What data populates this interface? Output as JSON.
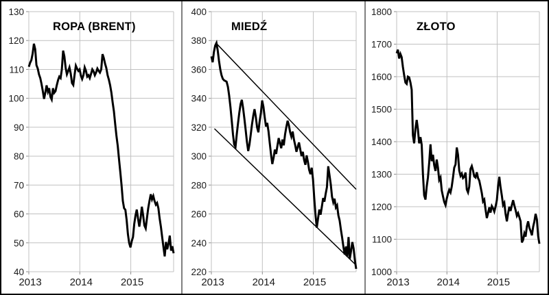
{
  "figure": {
    "background": "#ffffff",
    "outer_border_color": "#000000",
    "divider_color": "#7f7f7f",
    "grid_color": "#c0c0c0",
    "tick_color": "#8c8c8c",
    "label_color": "#1a1a1a",
    "series_color": "#000000"
  },
  "chart_data": [
    {
      "type": "line",
      "title": "ROPA (BRENT)",
      "xlabel": "",
      "ylabel": "",
      "grid": true,
      "legend": "none",
      "ylim": [
        40,
        130
      ],
      "ystep": 10,
      "yticks": [
        130,
        120,
        110,
        100,
        90,
        80,
        70,
        60,
        50,
        40
      ],
      "xlim": [
        2013,
        2015.84
      ],
      "xticks": [
        {
          "t": 2013,
          "label": "2013"
        },
        {
          "t": 2014,
          "label": "2014"
        },
        {
          "t": 2015,
          "label": "2015"
        }
      ],
      "trendlines": [],
      "series": [
        {
          "name": "ROPA (BRENT)",
          "t_start": 2013.0,
          "t_end": 2015.84,
          "values": [
            110.9,
            112.3,
            113.2,
            115.5,
            118.9,
            117.0,
            111.5,
            110.3,
            108.3,
            107.0,
            105.0,
            102.5,
            99.8,
            102.0,
            104.5,
            102.3,
            103.5,
            100.5,
            99.6,
            103.5,
            101.9,
            102.5,
            104.5,
            106.3,
            107.5,
            107.0,
            110.0,
            116.5,
            114.5,
            110.5,
            108.3,
            109.5,
            110.7,
            108.5,
            105.3,
            104.6,
            108.0,
            111.3,
            110.3,
            109.5,
            110.0,
            107.9,
            106.7,
            108.0,
            110.7,
            109.5,
            107.5,
            108.0,
            107.0,
            108.5,
            110.0,
            109.3,
            108.0,
            109.0,
            110.3,
            109.5,
            108.9,
            110.0,
            115.3,
            114.0,
            112.0,
            110.5,
            108.0,
            106.5,
            104.5,
            102.0,
            98.5,
            95.5,
            91.0,
            87.0,
            83.5,
            79.0,
            74.5,
            70.0,
            64.5,
            62.0,
            61.4,
            58.0,
            53.0,
            50.0,
            48.4,
            50.5,
            52.0,
            56.5,
            59.5,
            61.5,
            58.3,
            55.6,
            58.5,
            62.5,
            59.5,
            56.0,
            55.0,
            58.5,
            62.0,
            64.5,
            66.8,
            65.0,
            66.2,
            64.5,
            63.2,
            63.8,
            62.0,
            58.5,
            55.5,
            52.0,
            48.5,
            45.3,
            50.3,
            47.8,
            49.7,
            52.5,
            47.3,
            48.8,
            46.4
          ]
        }
      ]
    },
    {
      "type": "line",
      "title": "MIEDŹ",
      "xlabel": "",
      "ylabel": "",
      "grid": true,
      "legend": "none",
      "ylim": [
        220,
        400
      ],
      "ystep": 20,
      "yticks": [
        400,
        380,
        360,
        340,
        320,
        300,
        280,
        260,
        240,
        220
      ],
      "xlim": [
        2013,
        2015.84
      ],
      "xticks": [
        {
          "t": 2013,
          "label": "2013"
        },
        {
          "t": 2014,
          "label": "2014"
        },
        {
          "t": 2015,
          "label": "2015"
        }
      ],
      "trendlines": [
        {
          "name": "upper-channel-line",
          "from": [
            2013.09,
            378.3
          ],
          "to": [
            2015.84,
            277
          ]
        },
        {
          "name": "lower-channel-line",
          "from": [
            2013.06,
            319.0
          ],
          "to": [
            2015.84,
            224.5
          ]
        }
      ],
      "series": [
        {
          "name": "MIEDŹ",
          "t_start": 2013.0,
          "t_end": 2015.84,
          "values": [
            369,
            365,
            372,
            376.5,
            378.3,
            373,
            366,
            360,
            356,
            353.5,
            352.5,
            352,
            351.5,
            348,
            342,
            334,
            325,
            315,
            308,
            306.5,
            315,
            323,
            330,
            336,
            339,
            333,
            326,
            318,
            310,
            303.5,
            308,
            315,
            322,
            328,
            332.5,
            327,
            320,
            316.5,
            324,
            330,
            338.5,
            334,
            327,
            320.5,
            323,
            317,
            309,
            301,
            294.5,
            299,
            304.5,
            301.5,
            307,
            312.5,
            309,
            305.5,
            311.5,
            307.5,
            315,
            320,
            324.5,
            321.5,
            316.5,
            313.5,
            317,
            311.5,
            307.5,
            303,
            306.5,
            309.5,
            304.5,
            300,
            303,
            297.5,
            294,
            300.5,
            296,
            290.5,
            287.5,
            292,
            284,
            271,
            259,
            250.5,
            257,
            263,
            259.5,
            265,
            271,
            268.5,
            274,
            278.5,
            293,
            287,
            280.5,
            272,
            268,
            270.5,
            264.5,
            266,
            259,
            255.5,
            249,
            243.5,
            237,
            232,
            237.5,
            230.5,
            244,
            229,
            234.5,
            240.5,
            236,
            228,
            222
          ]
        }
      ]
    },
    {
      "type": "line",
      "title": "ZŁOTO",
      "xlabel": "",
      "ylabel": "",
      "grid": true,
      "legend": "none",
      "ylim": [
        1000,
        1800
      ],
      "ystep": 100,
      "yticks": [
        1800,
        1700,
        1600,
        1500,
        1400,
        1300,
        1200,
        1100,
        1000
      ],
      "xlim": [
        2013,
        2015.84
      ],
      "xticks": [
        {
          "t": 2013,
          "label": "2013"
        },
        {
          "t": 2014,
          "label": "2014"
        },
        {
          "t": 2015,
          "label": "2015"
        }
      ],
      "trendlines": [],
      "series": [
        {
          "name": "ZŁOTO",
          "t_start": 2013.0,
          "t_end": 2015.84,
          "values": [
            1672,
            1683,
            1656,
            1670,
            1660,
            1630,
            1605,
            1582,
            1578,
            1600,
            1598,
            1582,
            1560,
            1420,
            1395,
            1440,
            1467,
            1438,
            1395,
            1414,
            1390,
            1300,
            1235,
            1222,
            1262,
            1290,
            1335,
            1392,
            1340,
            1360,
            1328,
            1310,
            1345,
            1320,
            1282,
            1290,
            1250,
            1232,
            1215,
            1205,
            1225,
            1240,
            1252,
            1244,
            1262,
            1290,
            1320,
            1330,
            1382,
            1360,
            1311,
            1295,
            1302,
            1288,
            1292,
            1305,
            1253,
            1244,
            1262,
            1316,
            1325,
            1311,
            1293,
            1290,
            1306,
            1288,
            1280,
            1262,
            1242,
            1216,
            1222,
            1192,
            1165,
            1180,
            1198,
            1182,
            1202,
            1195,
            1185,
            1200,
            1220,
            1262,
            1292,
            1260,
            1234,
            1205,
            1212,
            1178,
            1155,
            1180,
            1200,
            1187,
            1205,
            1220,
            1204,
            1190,
            1172,
            1180,
            1168,
            1155,
            1090,
            1098,
            1118,
            1108,
            1140,
            1155,
            1135,
            1125,
            1112,
            1138,
            1155,
            1178,
            1160,
            1110,
            1086
          ]
        }
      ]
    }
  ]
}
